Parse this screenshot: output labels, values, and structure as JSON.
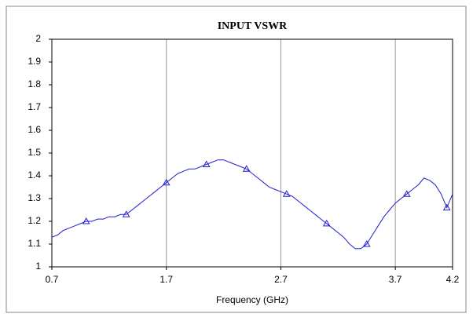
{
  "chart_data": {
    "type": "line",
    "title": "INPUT VSWR",
    "xlabel": "Frequency (GHz)",
    "x": [
      0.7,
      0.75,
      0.8,
      0.85,
      0.9,
      0.95,
      1.0,
      1.05,
      1.1,
      1.15,
      1.2,
      1.25,
      1.3,
      1.35,
      1.4,
      1.45,
      1.5,
      1.55,
      1.6,
      1.65,
      1.7,
      1.75,
      1.8,
      1.85,
      1.9,
      1.95,
      2.0,
      2.05,
      2.1,
      2.15,
      2.2,
      2.25,
      2.3,
      2.35,
      2.4,
      2.45,
      2.5,
      2.55,
      2.6,
      2.65,
      2.7,
      2.75,
      2.8,
      2.85,
      2.9,
      2.95,
      3.0,
      3.05,
      3.1,
      3.15,
      3.2,
      3.25,
      3.3,
      3.35,
      3.4,
      3.45,
      3.5,
      3.55,
      3.6,
      3.65,
      3.7,
      3.75,
      3.8,
      3.85,
      3.9,
      3.95,
      4.0,
      4.05,
      4.1,
      4.15,
      4.2
    ],
    "series": [
      {
        "name": "VSWR",
        "color": "#1f1fd0",
        "values": [
          1.13,
          1.14,
          1.16,
          1.17,
          1.18,
          1.19,
          1.2,
          1.2,
          1.21,
          1.21,
          1.22,
          1.22,
          1.23,
          1.23,
          1.25,
          1.27,
          1.29,
          1.31,
          1.33,
          1.35,
          1.37,
          1.39,
          1.41,
          1.42,
          1.43,
          1.43,
          1.44,
          1.45,
          1.46,
          1.47,
          1.47,
          1.46,
          1.45,
          1.44,
          1.43,
          1.41,
          1.39,
          1.37,
          1.35,
          1.34,
          1.33,
          1.32,
          1.31,
          1.29,
          1.27,
          1.25,
          1.23,
          1.21,
          1.19,
          1.17,
          1.15,
          1.13,
          1.1,
          1.08,
          1.08,
          1.1,
          1.14,
          1.18,
          1.22,
          1.25,
          1.28,
          1.3,
          1.32,
          1.34,
          1.36,
          1.39,
          1.38,
          1.36,
          1.32,
          1.26,
          1.32
        ]
      }
    ],
    "markers": "triangle",
    "xlim": [
      0.7,
      4.2
    ],
    "xticks": [
      0.7,
      1.7,
      2.7,
      3.7,
      4.2
    ],
    "ylim": [
      1,
      2
    ],
    "yticks": [
      1,
      1.1,
      1.2,
      1.3,
      1.4,
      1.5,
      1.6,
      1.7,
      1.8,
      1.9,
      2
    ],
    "grid": "x"
  }
}
